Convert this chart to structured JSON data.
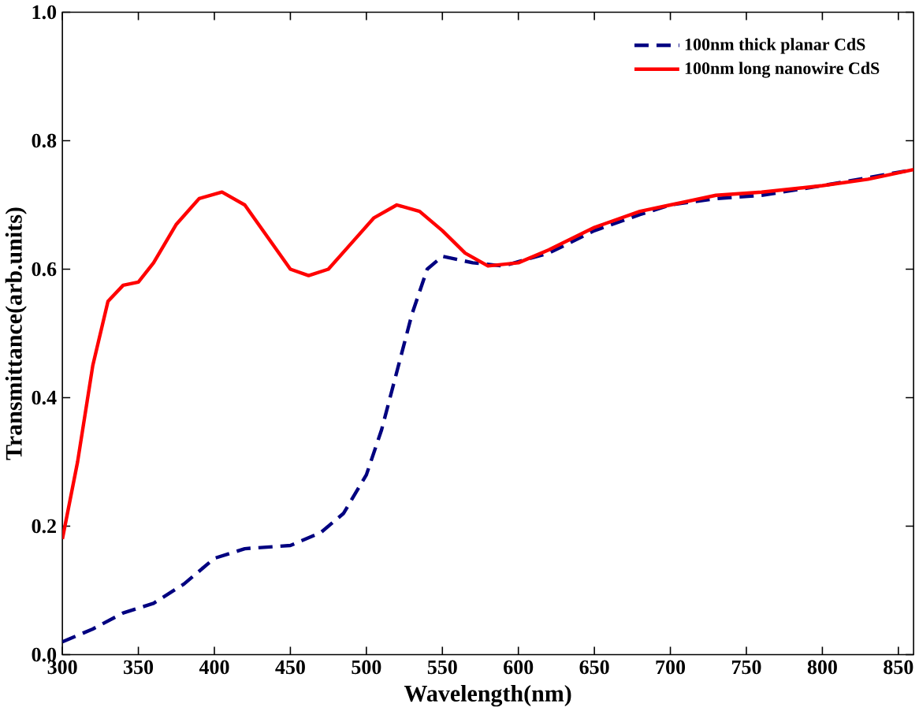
{
  "chart_data": {
    "type": "line",
    "xlabel": "Wavelength(nm)",
    "ylabel": "Transmittance(arb.units)",
    "xlim": [
      300,
      860
    ],
    "ylim": [
      0,
      1.0
    ],
    "xticks": [
      300,
      350,
      400,
      450,
      500,
      550,
      600,
      650,
      700,
      750,
      800,
      850
    ],
    "yticks": [
      {
        "value": 0,
        "label": "0.0"
      },
      0.2,
      0.4,
      0.6,
      0.8,
      {
        "value": 1,
        "label": "1.0"
      }
    ],
    "legend": "top right",
    "grid": false,
    "marker": "none",
    "series": [
      {
        "name": "100nm thick planar CdS",
        "color": "#000080",
        "line_style": "dashed",
        "x": [
          300,
          320,
          340,
          360,
          380,
          400,
          420,
          450,
          470,
          485,
          500,
          510,
          520,
          530,
          540,
          550,
          570,
          590,
          620,
          650,
          680,
          700,
          730,
          760,
          800,
          830,
          860
        ],
        "values": [
          0.02,
          0.04,
          0.065,
          0.08,
          0.11,
          0.15,
          0.165,
          0.17,
          0.19,
          0.22,
          0.28,
          0.35,
          0.44,
          0.53,
          0.6,
          0.62,
          0.61,
          0.605,
          0.625,
          0.66,
          0.685,
          0.7,
          0.71,
          0.715,
          0.73,
          null,
          0.755
        ]
      },
      {
        "name": "100nm long nanowire CdS",
        "color": "#ff0000",
        "line_style": "solid",
        "x": [
          300,
          310,
          320,
          330,
          340,
          350,
          360,
          375,
          390,
          405,
          420,
          435,
          450,
          462,
          475,
          490,
          505,
          520,
          535,
          550,
          565,
          580,
          600,
          620,
          650,
          680,
          700,
          730,
          760,
          800,
          830,
          860
        ],
        "values": [
          0.18,
          0.3,
          0.45,
          0.55,
          0.575,
          0.58,
          0.61,
          0.67,
          0.71,
          0.72,
          0.7,
          0.65,
          0.6,
          0.59,
          0.6,
          0.64,
          0.68,
          0.7,
          0.69,
          0.66,
          0.625,
          0.605,
          0.61,
          0.63,
          0.665,
          0.69,
          0.7,
          0.715,
          0.72,
          0.73,
          0.74,
          0.755
        ]
      }
    ]
  }
}
